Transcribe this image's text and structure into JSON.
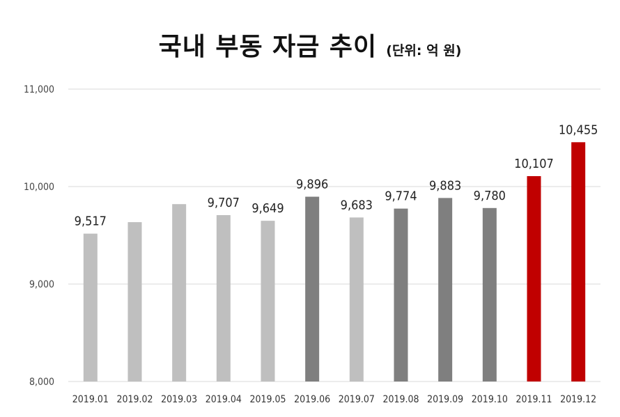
{
  "chart_data": {
    "type": "bar",
    "title": "국내 부동 자금 추이",
    "subtitle": "(단위: 억 원)",
    "xlabel": "",
    "ylabel": "",
    "ylim": [
      8000,
      11000
    ],
    "yticks": [
      8000,
      9000,
      10000,
      11000
    ],
    "ytick_labels": [
      "8,000",
      "9,000",
      "10,000",
      "11,000"
    ],
    "grid": true,
    "legend": "none",
    "categories": [
      "2019.01",
      "2019.02",
      "2019.03",
      "2019.04",
      "2019.05",
      "2019.06",
      "2019.07",
      "2019.08",
      "2019.09",
      "2019.10",
      "2019.11",
      "2019.12"
    ],
    "values": [
      9517,
      9635,
      9820,
      9707,
      9649,
      9896,
      9683,
      9774,
      9883,
      9780,
      10107,
      10455
    ],
    "data_labels": [
      "9,517",
      "",
      "",
      "9,707",
      "9,649",
      "9,896",
      "9,683",
      "9,774",
      "9,883",
      "9,780",
      "10,107",
      "10,455"
    ],
    "bar_colors": [
      "#bfbfbf",
      "#bfbfbf",
      "#bfbfbf",
      "#bfbfbf",
      "#bfbfbf",
      "#7f7f7f",
      "#bfbfbf",
      "#7f7f7f",
      "#7f7f7f",
      "#7f7f7f",
      "#c00000",
      "#c00000"
    ],
    "grid_color": "#d9d9d9"
  }
}
